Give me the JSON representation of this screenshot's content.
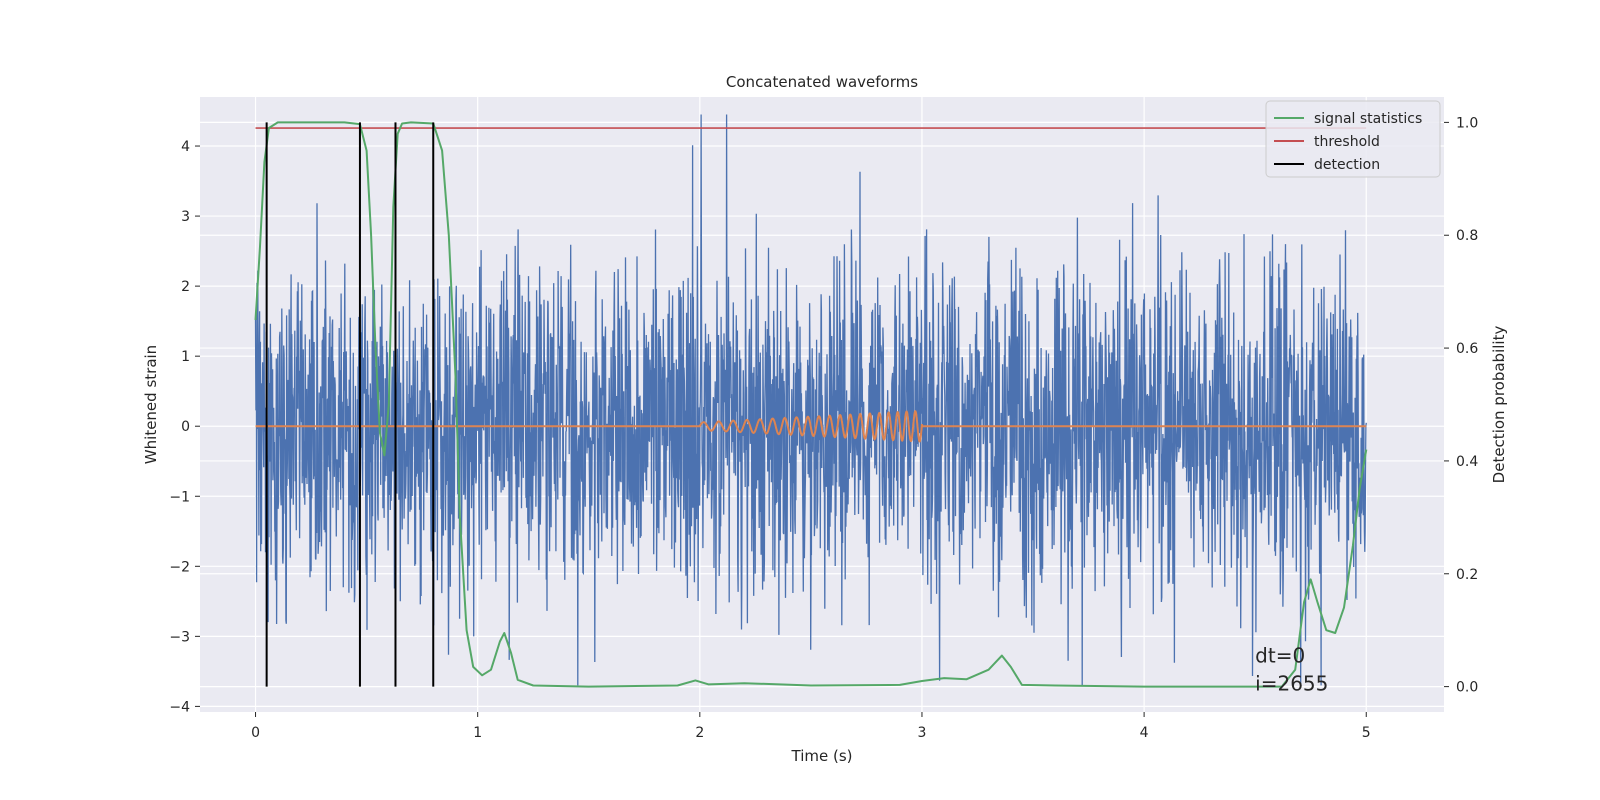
{
  "chart_data": {
    "type": "line",
    "title": "Concatenated waveforms",
    "xlabel": "Time (s)",
    "ylabel": "Whitened strain",
    "ylabel_right": "Detection probability",
    "xlim": [
      -0.25,
      5.35
    ],
    "ylim": [
      -4.08,
      4.7
    ],
    "ylim_right": [
      -0.045,
      1.045
    ],
    "x_ticks": [
      0,
      1,
      2,
      3,
      4,
      5
    ],
    "x_tick_labels": [
      "0",
      "1",
      "2",
      "3",
      "4",
      "5"
    ],
    "y_ticks": [
      -4,
      -3,
      -2,
      -1,
      0,
      1,
      2,
      3,
      4
    ],
    "y_tick_labels": [
      "−4",
      "−3",
      "−2",
      "−1",
      "0",
      "1",
      "2",
      "3",
      "4"
    ],
    "y_right_ticks": [
      0.0,
      0.2,
      0.4,
      0.6,
      0.8,
      1.0
    ],
    "y_right_tick_labels": [
      "0.0",
      "0.2",
      "0.4",
      "0.6",
      "0.8",
      "1.0"
    ],
    "grid": true,
    "legend_position": "top-right",
    "legend": [
      {
        "label": "signal statistics",
        "color": "#55a868"
      },
      {
        "label": "threshold",
        "color": "#c44e52"
      },
      {
        "label": "detection",
        "color": "#000000"
      }
    ],
    "annotations": [
      "dt=0",
      "i=2655"
    ],
    "noise_series": {
      "color": "#4c72b0",
      "x_range": [
        0,
        5
      ],
      "typical_amplitude": 1.2,
      "max_peak": 4.45
    },
    "injected_chirp": {
      "color": "#dd8452",
      "x_start": 2.0,
      "x_end": 3.0,
      "max_amplitude": 0.22
    },
    "threshold": {
      "value": 0.99,
      "x_range": [
        0,
        5
      ],
      "color": "#c44e52"
    },
    "detections": {
      "x": [
        0.05,
        0.47,
        0.63,
        0.8
      ],
      "color": "#000000"
    },
    "signal_statistics": {
      "color": "#55a868",
      "points": [
        [
          0.0,
          0.65
        ],
        [
          0.02,
          0.78
        ],
        [
          0.04,
          0.93
        ],
        [
          0.06,
          0.99
        ],
        [
          0.1,
          1.0
        ],
        [
          0.2,
          1.0
        ],
        [
          0.3,
          1.0
        ],
        [
          0.4,
          1.0
        ],
        [
          0.47,
          0.997
        ],
        [
          0.5,
          0.95
        ],
        [
          0.52,
          0.8
        ],
        [
          0.54,
          0.6
        ],
        [
          0.56,
          0.45
        ],
        [
          0.58,
          0.41
        ],
        [
          0.6,
          0.5
        ],
        [
          0.62,
          0.85
        ],
        [
          0.64,
          0.98
        ],
        [
          0.66,
          0.998
        ],
        [
          0.7,
          1.0
        ],
        [
          0.8,
          0.998
        ],
        [
          0.84,
          0.95
        ],
        [
          0.87,
          0.8
        ],
        [
          0.9,
          0.55
        ],
        [
          0.92,
          0.3
        ],
        [
          0.95,
          0.1
        ],
        [
          0.98,
          0.035
        ],
        [
          1.02,
          0.02
        ],
        [
          1.06,
          0.03
        ],
        [
          1.1,
          0.08
        ],
        [
          1.12,
          0.095
        ],
        [
          1.15,
          0.06
        ],
        [
          1.18,
          0.012
        ],
        [
          1.25,
          0.002
        ],
        [
          1.5,
          0.0
        ],
        [
          1.9,
          0.002
        ],
        [
          1.98,
          0.011
        ],
        [
          2.04,
          0.004
        ],
        [
          2.2,
          0.006
        ],
        [
          2.5,
          0.002
        ],
        [
          2.9,
          0.003
        ],
        [
          3.0,
          0.01
        ],
        [
          3.1,
          0.015
        ],
        [
          3.2,
          0.013
        ],
        [
          3.3,
          0.03
        ],
        [
          3.36,
          0.055
        ],
        [
          3.4,
          0.035
        ],
        [
          3.45,
          0.003
        ],
        [
          3.6,
          0.002
        ],
        [
          4.0,
          0.0
        ],
        [
          4.5,
          0.0
        ],
        [
          4.62,
          0.0
        ],
        [
          4.68,
          0.03
        ],
        [
          4.72,
          0.15
        ],
        [
          4.75,
          0.19
        ],
        [
          4.78,
          0.15
        ],
        [
          4.82,
          0.1
        ],
        [
          4.86,
          0.095
        ],
        [
          4.9,
          0.14
        ],
        [
          4.94,
          0.25
        ],
        [
          4.97,
          0.35
        ],
        [
          5.0,
          0.42
        ]
      ]
    }
  }
}
